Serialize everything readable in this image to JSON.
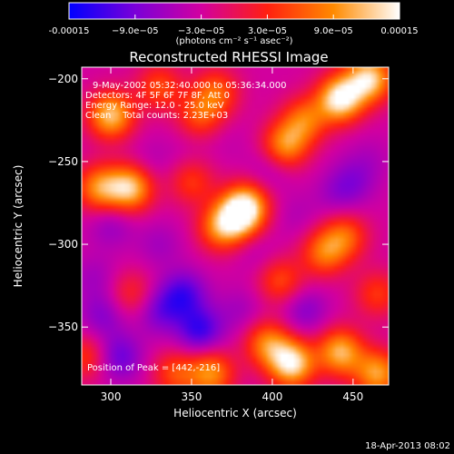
{
  "chart_data": {
    "type": "heatmap",
    "title": "Reconstructed RHESSI Image",
    "xlabel": "Heliocentric X (arcsec)",
    "ylabel": "Heliocentric Y (arcsec)",
    "xlim": [
      282,
      472
    ],
    "ylim": [
      -385,
      -193
    ],
    "x_ticks": [
      300,
      350,
      400,
      450
    ],
    "y_ticks": [
      -200,
      -250,
      -300,
      -350
    ],
    "colorbar": {
      "min": -0.00015,
      "max": 0.00015,
      "tick_values": [
        -0.00015,
        -9e-05,
        -3e-05,
        3e-05,
        9e-05,
        0.00015
      ],
      "tick_labels": [
        "-0.00015",
        "−9.0e−05",
        "−3.0e−05",
        "3.0e−05",
        "9.0e−05",
        "0.00015"
      ],
      "label": "(photons cm⁻² s⁻¹ asec⁻²)",
      "colors": [
        "#0000ff",
        "#7a00d8",
        "#d200a0",
        "#ff2010",
        "#ff8a00",
        "#ffffff"
      ]
    },
    "annotations": [
      "9-May-2002 05:32:40.000 to 05:36:34.000",
      "Detectors: 4F 5F 6F 7F 8F, Att 0",
      "Energy Range: 12.0 - 25.0 keV",
      "Clean    Total counts: 2.23E+03"
    ],
    "peak_label": "Position of Peak = [442,-216]",
    "peak": [
      442,
      -216
    ],
    "sources": [
      {
        "x": 442,
        "y": -212,
        "value": 0.00015
      },
      {
        "x": 460,
        "y": -200,
        "value": 0.00013
      },
      {
        "x": 300,
        "y": -222,
        "value": 0.00012
      },
      {
        "x": 312,
        "y": -266,
        "value": 0.00012
      },
      {
        "x": 293,
        "y": -266,
        "value": 9e-05
      },
      {
        "x": 380,
        "y": -282,
        "value": 0.00012
      },
      {
        "x": 368,
        "y": -290,
        "value": 8e-05
      },
      {
        "x": 385,
        "y": -275,
        "value": 6e-05
      },
      {
        "x": 365,
        "y": -208,
        "value": 6e-05
      },
      {
        "x": 355,
        "y": -222,
        "value": 5e-05
      },
      {
        "x": 350,
        "y": -262,
        "value": 4e-05
      },
      {
        "x": 408,
        "y": -240,
        "value": 9e-05
      },
      {
        "x": 420,
        "y": -225,
        "value": 7e-05
      },
      {
        "x": 432,
        "y": -305,
        "value": 7e-05
      },
      {
        "x": 445,
        "y": -295,
        "value": 6e-05
      },
      {
        "x": 330,
        "y": -205,
        "value": 5e-05
      },
      {
        "x": 412,
        "y": -372,
        "value": 0.00014
      },
      {
        "x": 442,
        "y": -365,
        "value": 0.00011
      },
      {
        "x": 465,
        "y": -378,
        "value": 0.0001
      },
      {
        "x": 397,
        "y": -360,
        "value": 8e-05
      },
      {
        "x": 362,
        "y": -378,
        "value": 9e-05
      },
      {
        "x": 340,
        "y": -378,
        "value": 5e-05
      },
      {
        "x": 285,
        "y": -368,
        "value": 4e-05
      },
      {
        "x": 405,
        "y": -322,
        "value": 5e-05
      },
      {
        "x": 465,
        "y": -330,
        "value": 4e-05
      },
      {
        "x": 313,
        "y": -330,
        "value": 3e-05
      },
      {
        "x": 325,
        "y": -250,
        "value": -5e-05
      },
      {
        "x": 345,
        "y": -245,
        "value": -4e-05
      },
      {
        "x": 300,
        "y": -288,
        "value": -7e-05
      },
      {
        "x": 290,
        "y": -320,
        "value": -6e-05
      },
      {
        "x": 330,
        "y": -300,
        "value": -6e-05
      },
      {
        "x": 345,
        "y": -330,
        "value": -0.00011
      },
      {
        "x": 330,
        "y": -340,
        "value": -9e-05
      },
      {
        "x": 355,
        "y": -352,
        "value": -0.00012
      },
      {
        "x": 305,
        "y": -368,
        "value": -0.0001
      },
      {
        "x": 295,
        "y": -343,
        "value": -8e-05
      },
      {
        "x": 398,
        "y": -255,
        "value": -6e-05
      },
      {
        "x": 415,
        "y": -283,
        "value": -5e-05
      },
      {
        "x": 450,
        "y": -262,
        "value": -7e-05
      },
      {
        "x": 440,
        "y": -270,
        "value": -6e-05
      },
      {
        "x": 390,
        "y": -305,
        "value": -5e-05
      },
      {
        "x": 420,
        "y": -340,
        "value": -8e-05
      },
      {
        "x": 380,
        "y": -340,
        "value": -6e-05
      },
      {
        "x": 460,
        "y": -248,
        "value": -5e-05
      },
      {
        "x": 372,
        "y": -238,
        "value": -4e-05
      }
    ]
  },
  "footer": {
    "timestamp": "18-Apr-2013 08:02"
  }
}
